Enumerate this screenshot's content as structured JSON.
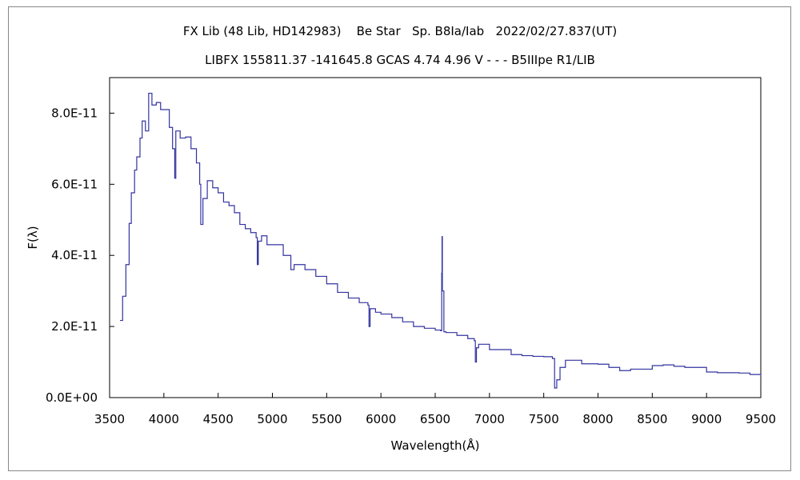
{
  "chart_data": {
    "type": "line",
    "title": "FX Lib (48 Lib, HD142983)    Be Star   Sp. B8Ia/Iab   2022/02/27.837(UT)",
    "subtitle": "LIBFX 155811.37 -141645.8 GCAS 4.74 4.96 V - - - B5IIIpe R1/LIB",
    "xlabel": "Wavelength(Å)",
    "ylabel": "F(λ)",
    "xlim": [
      3500,
      9500
    ],
    "ylim": [
      0,
      9e-11
    ],
    "xticks": [
      3500,
      4000,
      4500,
      5000,
      5500,
      6000,
      6500,
      7000,
      7500,
      8000,
      8500,
      9000,
      9500
    ],
    "xtick_labels": [
      "3500",
      "4000",
      "4500",
      "5000",
      "5500",
      "6000",
      "6500",
      "7000",
      "7500",
      "8000",
      "8500",
      "9000",
      "9500"
    ],
    "yticks": [
      0,
      2e-11,
      4e-11,
      6e-11,
      8e-11
    ],
    "ytick_labels": [
      "0.0E+00",
      "2.0E-11",
      "4.0E-11",
      "6.0E-11",
      "8.0E-11"
    ],
    "grid": false,
    "line_color": "#3333a0",
    "series": [
      {
        "x": [
          3596,
          3620,
          3650,
          3680,
          3700,
          3730,
          3750,
          3780,
          3800,
          3830,
          3860,
          3890,
          3930,
          3970,
          4050,
          4080,
          4100,
          4110,
          4150,
          4200,
          4250,
          4300,
          4330,
          4340,
          4360,
          4400,
          4450,
          4500,
          4550,
          4600,
          4650,
          4700,
          4750,
          4800,
          4850,
          4861,
          4870,
          4900,
          4950,
          5000,
          5100,
          5170,
          5200,
          5300,
          5400,
          5500,
          5600,
          5700,
          5800,
          5880,
          5890,
          5900,
          5950,
          6000,
          6100,
          6200,
          6300,
          6400,
          6500,
          6550,
          6560,
          6563,
          6566,
          6580,
          6600,
          6700,
          6800,
          6860,
          6870,
          6880,
          6900,
          7000,
          7100,
          7200,
          7300,
          7400,
          7500,
          7580,
          7600,
          7620,
          7650,
          7700,
          7800,
          7850,
          8000,
          8100,
          8200,
          8300,
          8500,
          8600,
          8700,
          8800,
          9000,
          9100,
          9300,
          9400,
          9500
        ],
        "y": [
          2.17e-11,
          2.85e-11,
          3.74e-11,
          4.9e-11,
          5.76e-11,
          6.4e-11,
          6.77e-11,
          7.3e-11,
          7.78e-11,
          7.5e-11,
          8.56e-11,
          8.23e-11,
          8.3e-11,
          8.1e-11,
          7.6e-11,
          7e-11,
          6.17e-11,
          7.5e-11,
          7.3e-11,
          7.33e-11,
          7e-11,
          6.6e-11,
          6e-11,
          4.87e-11,
          5.6e-11,
          6.1e-11,
          5.9e-11,
          5.76e-11,
          5.5e-11,
          5.4e-11,
          5.2e-11,
          4.87e-11,
          4.75e-11,
          4.64e-11,
          4.5e-11,
          3.74e-11,
          4.4e-11,
          4.55e-11,
          4.3e-11,
          4.3e-11,
          4e-11,
          3.6e-11,
          3.74e-11,
          3.6e-11,
          3.41e-11,
          3.2e-11,
          2.96e-11,
          2.8e-11,
          2.67e-11,
          2.6e-11,
          2e-11,
          2.5e-11,
          2.4e-11,
          2.35e-11,
          2.25e-11,
          2.13e-11,
          2e-11,
          1.95e-11,
          1.9e-11,
          1.88e-11,
          3.5e-11,
          4.53e-11,
          3e-11,
          1.85e-11,
          1.83e-11,
          1.75e-11,
          1.66e-11,
          1.6e-11,
          1e-11,
          1.4e-11,
          1.5e-11,
          1.35e-11,
          1.35e-11,
          1.21e-11,
          1.18e-11,
          1.16e-11,
          1.15e-11,
          1.1e-11,
          2.7e-12,
          5e-12,
          8.5e-12,
          1.05e-11,
          1.05e-11,
          9.5e-12,
          9.4e-12,
          8.5e-12,
          7.6e-12,
          8e-12,
          9e-12,
          9.2e-12,
          8.8e-12,
          8.5e-12,
          7.2e-12,
          7e-12,
          6.9e-12,
          6.5e-12,
          6e-12
        ]
      }
    ]
  }
}
